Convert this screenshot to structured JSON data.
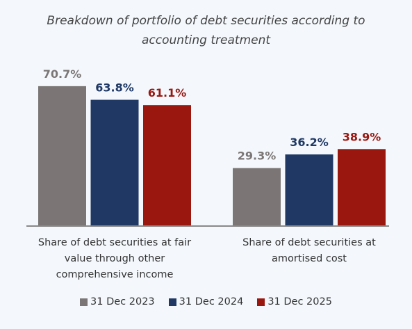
{
  "chart_data": {
    "type": "bar",
    "title": "Breakdown of portfolio of debt securities according to accounting treatment",
    "categories": [
      "Share of debt securities at fair\nvalue through other\ncomprehensive income",
      "Share of debt securities at\namortised cost"
    ],
    "series": [
      {
        "name": "31 Dec 2023",
        "color": "#7b7675",
        "values": [
          70.7,
          29.3
        ],
        "value_labels": [
          "70.7%",
          "29.3%"
        ]
      },
      {
        "name": "31 Dec 2024",
        "color": "#1f3864",
        "values": [
          63.8,
          36.2
        ],
        "value_labels": [
          "63.8%",
          "36.2%"
        ]
      },
      {
        "name": "31 Dec 2025",
        "color": "#9a1710",
        "values": [
          61.1,
          38.9
        ],
        "value_labels": [
          "61.1%",
          "38.9%"
        ]
      }
    ],
    "legend": "bottom"
  }
}
